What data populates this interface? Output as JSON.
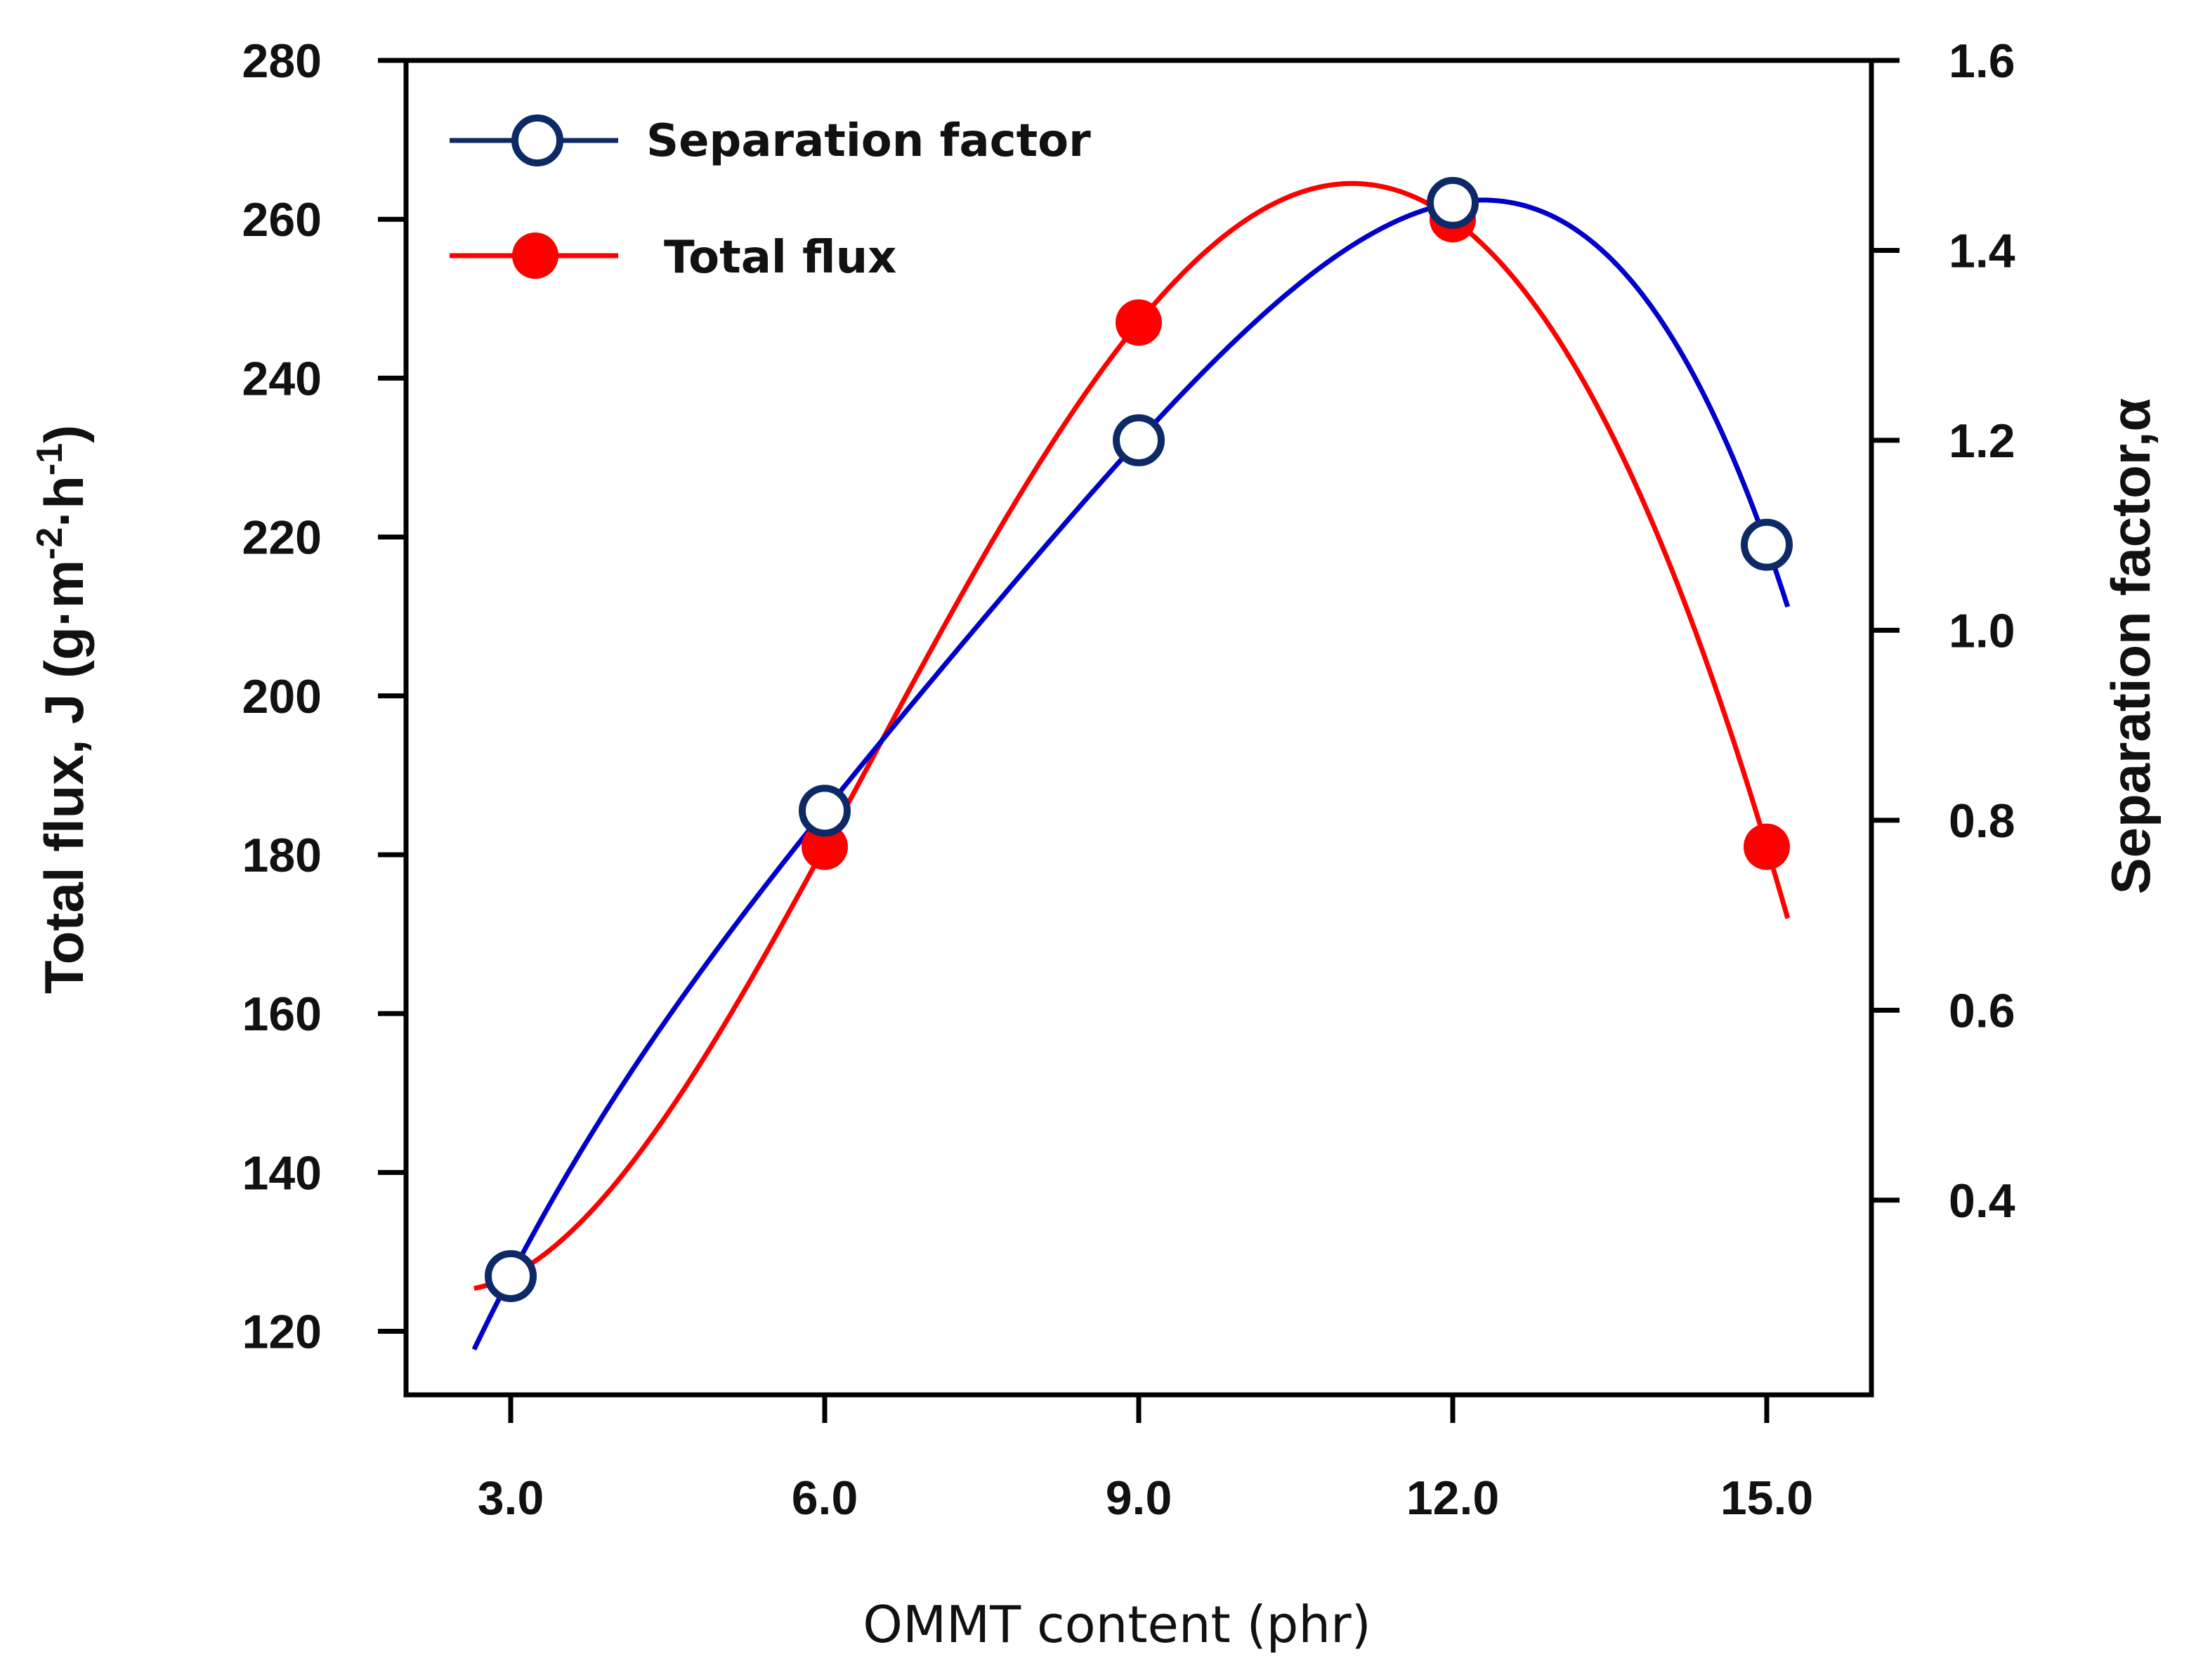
{
  "chart_data": {
    "type": "line",
    "title": "",
    "xlabel": "OMMT content (phr)",
    "ylabel_left": "Total flux, J (g·m⁻²·h⁻¹)",
    "ylabel_left_parts": {
      "prefix": "Total flux, J (g·m",
      "sup1": "-2",
      "middle": "·h",
      "sup2": "-1",
      "suffix": ")"
    },
    "ylabel_right": "Separation factor,α",
    "x_ticks": [
      "3.0",
      "6.0",
      "9.0",
      "12.0",
      "15.0"
    ],
    "x_values": [
      3,
      6,
      9,
      12,
      15
    ],
    "xlim": [
      2.0,
      16.0
    ],
    "ylim_left": [
      112,
      280
    ],
    "ylim_right": [
      0.195,
      1.6
    ],
    "y_left_ticks": [
      "120",
      "140",
      "160",
      "180",
      "200",
      "220",
      "240",
      "260",
      "280"
    ],
    "y_right_ticks": [
      "0.4",
      "0.6",
      "0.8",
      "1.0",
      "1.2",
      "1.4",
      "1.6"
    ],
    "legend_position": "top-left",
    "series": [
      {
        "name": "Separation factor",
        "axis": "right",
        "color": "#0000cc",
        "marker": "open-circle",
        "marker_edge_color": "#0d2a66",
        "x": [
          3,
          6,
          9,
          12,
          15
        ],
        "values": [
          0.32,
          0.81,
          1.2,
          1.45,
          1.09
        ]
      },
      {
        "name": "Total flux",
        "axis": "left",
        "color": "#ff0000",
        "marker": "filled-circle",
        "x": [
          3,
          6,
          9,
          12,
          15
        ],
        "values": [
          127,
          181,
          247,
          260,
          181
        ]
      }
    ]
  }
}
